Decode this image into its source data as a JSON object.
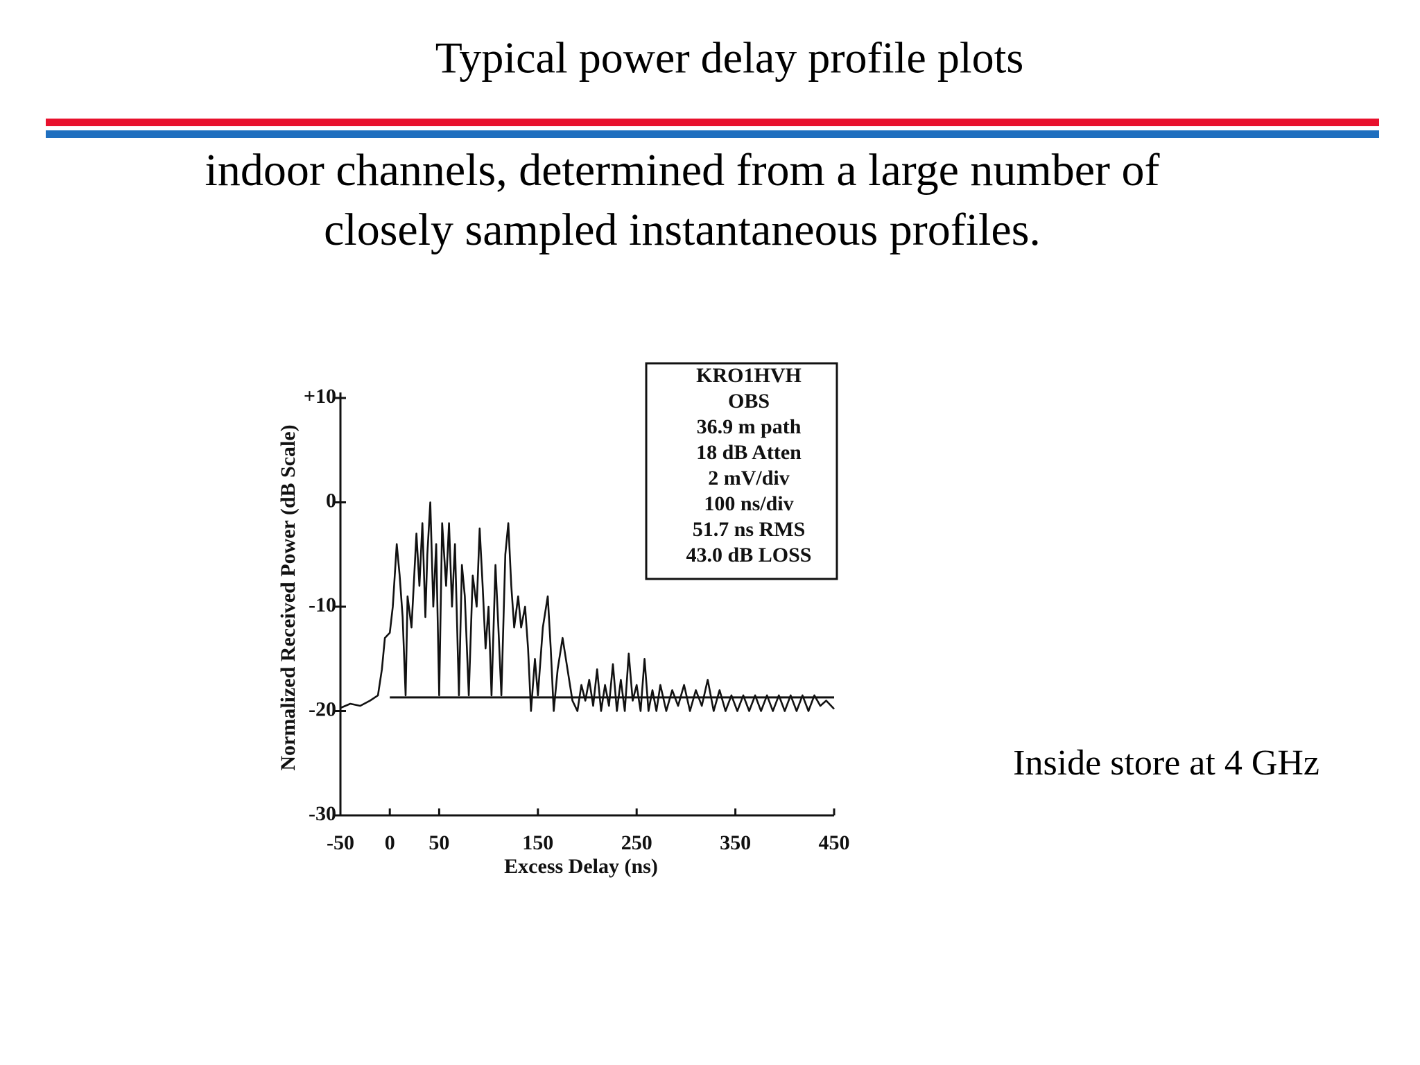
{
  "title": "Typical power delay profile plots",
  "subtitle_lines": [
    "indoor channels, determined from a large number of",
    "closely sampled instantaneous profiles."
  ],
  "caption": "Inside store at 4 GHz",
  "chart_data": {
    "type": "line",
    "x_label": "Excess Delay (ns)",
    "y_label": "Normalized Received Power (dB Scale)",
    "annotation_lines": [
      "KRO1HVH",
      "OBS",
      "36.9 m path",
      "18 dB Atten",
      "2 mV/div",
      "100 ns/div",
      "51.7 ns RMS",
      "43.0 dB LOSS"
    ],
    "color": "#111111",
    "x": [
      -50,
      -40,
      -30,
      -20,
      -12,
      -8,
      -5,
      0,
      3,
      7,
      10,
      13,
      16,
      18,
      22,
      27,
      30,
      33,
      36,
      38,
      41,
      44,
      47,
      50,
      53,
      57,
      60,
      63,
      66,
      70,
      73,
      76,
      80,
      84,
      88,
      91,
      94,
      97,
      100,
      103,
      107,
      110,
      113,
      117,
      120,
      123,
      126,
      130,
      133,
      137,
      140,
      143,
      147,
      150,
      155,
      160,
      163,
      166,
      170,
      175,
      180,
      185,
      190,
      194,
      198,
      202,
      206,
      210,
      214,
      218,
      222,
      226,
      230,
      234,
      238,
      242,
      246,
      250,
      254,
      258,
      262,
      266,
      270,
      274,
      280,
      286,
      292,
      298,
      304,
      310,
      316,
      322,
      328,
      334,
      340,
      346,
      352,
      358,
      364,
      370,
      376,
      382,
      388,
      394,
      400,
      406,
      412,
      418,
      424,
      430,
      436,
      442,
      450
    ],
    "values": [
      -19.7,
      -19.3,
      -19.5,
      -19.0,
      -18.5,
      -16,
      -13,
      -12.5,
      -10,
      -4,
      -7,
      -11,
      -18.5,
      -9,
      -12,
      -3,
      -8,
      -2,
      -11,
      -5,
      0,
      -10,
      -4,
      -18.5,
      -2,
      -8,
      -2,
      -10,
      -4,
      -18.5,
      -6,
      -9,
      -18.5,
      -7,
      -10,
      -2.5,
      -8,
      -14,
      -10,
      -18.5,
      -6,
      -12,
      -18.5,
      -5,
      -2,
      -8,
      -12,
      -9,
      -12,
      -10,
      -14,
      -20,
      -15,
      -18.5,
      -12,
      -9,
      -14,
      -20,
      -16,
      -13,
      -16,
      -19,
      -20,
      -17.5,
      -19,
      -17,
      -19.5,
      -16,
      -20,
      -17.5,
      -19.5,
      -15.5,
      -20,
      -17,
      -20,
      -14.5,
      -19,
      -17.5,
      -20,
      -15,
      -20,
      -18,
      -20,
      -17.5,
      -20,
      -18,
      -19.5,
      -17.5,
      -20,
      -18,
      -19.5,
      -17,
      -20,
      -18,
      -20,
      -18.5,
      -20,
      -18.5,
      -20,
      -18.5,
      -20,
      -18.5,
      -20,
      -18.5,
      -20,
      -18.5,
      -20,
      -18.5,
      -20,
      -18.5,
      -19.5,
      -19,
      -19.8
    ],
    "threshold": {
      "x": [
        0,
        450
      ],
      "values": [
        -18.7,
        -18.7
      ]
    },
    "xlim": [
      -50,
      450
    ],
    "xticks": [
      -50,
      0,
      50,
      150,
      250,
      350,
      450
    ],
    "ylim": [
      -30,
      10
    ],
    "yticks": [
      -30,
      -20,
      -10,
      0,
      {
        "value": 10,
        "label": "+10"
      }
    ]
  }
}
